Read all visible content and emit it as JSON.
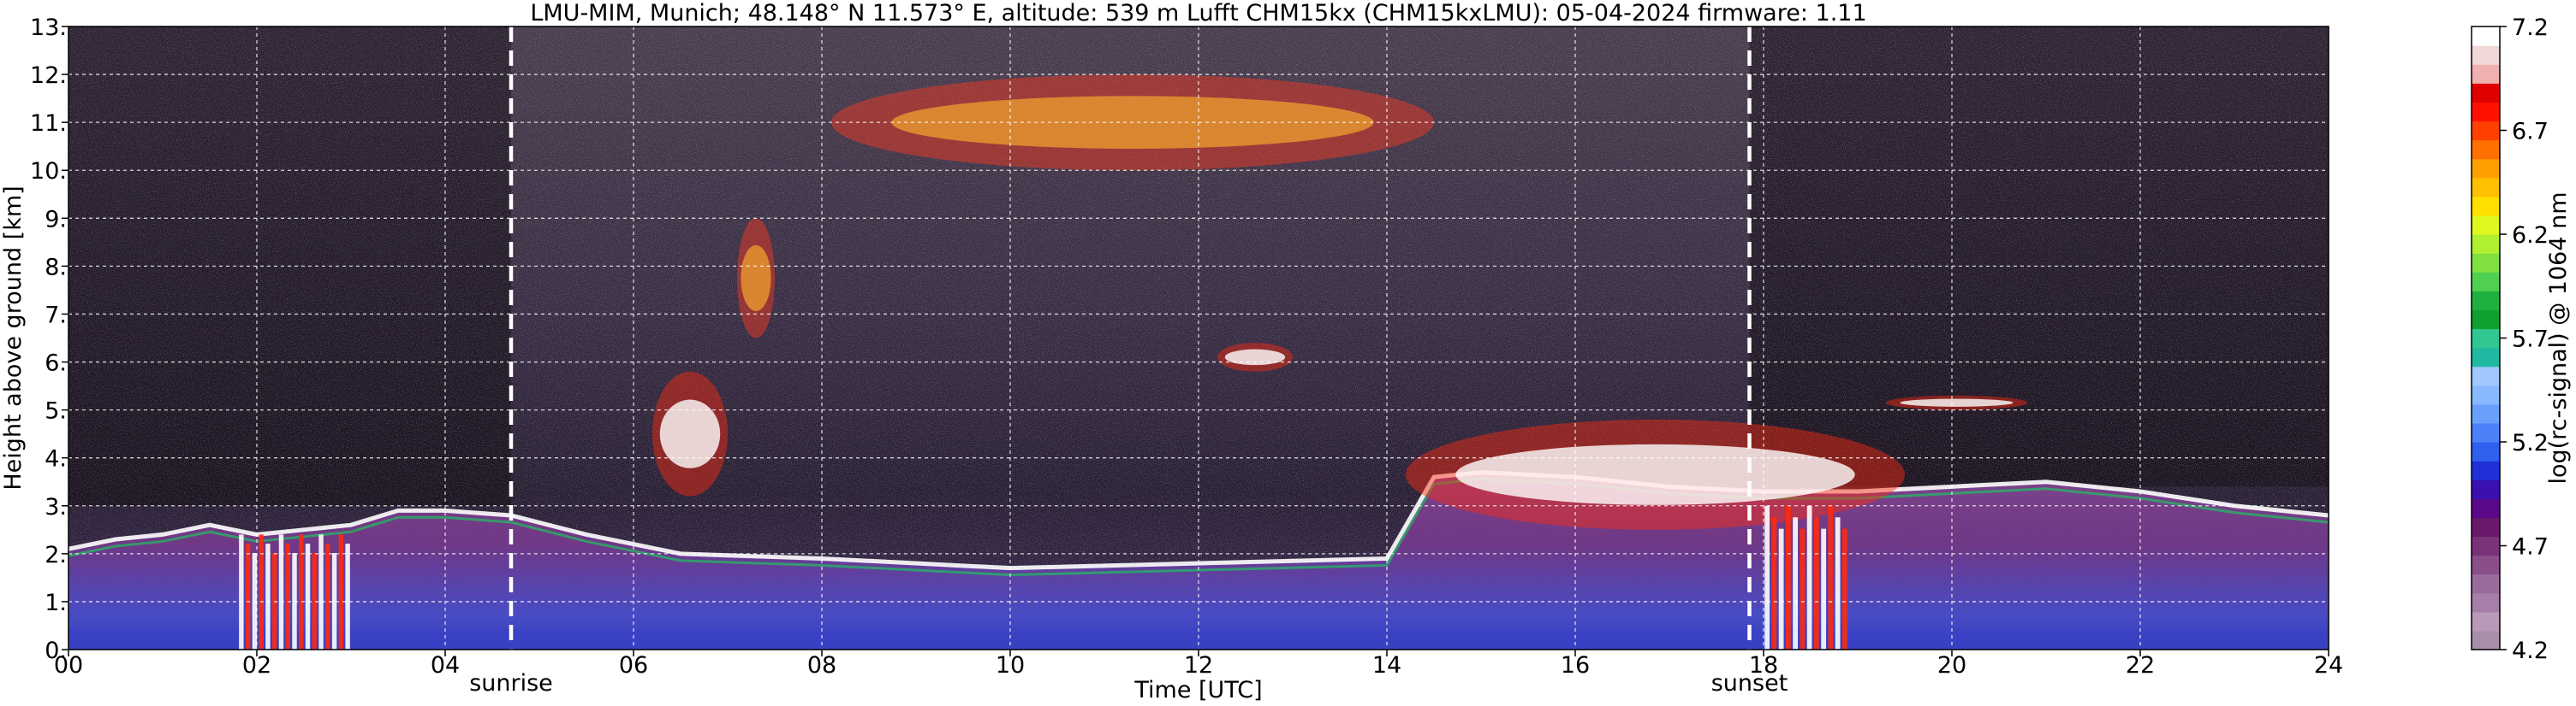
{
  "chart_data": {
    "type": "heatmap",
    "title": "LMU-MIM, Munich; 48.148° N 11.573° E, altitude: 539 m    Lufft CHM15kx (CHM15kxLMU): 05-04-2024    firmware: 1.11",
    "xlabel": "Time [UTC]",
    "ylabel": "Height above ground [km]",
    "xlim": [
      0,
      24
    ],
    "ylim": [
      0,
      13
    ],
    "x_ticks": [
      "00",
      "02",
      "04",
      "06",
      "08",
      "10",
      "12",
      "14",
      "16",
      "18",
      "20",
      "22",
      "24"
    ],
    "y_ticks": [
      "0.",
      "1.",
      "2.",
      "3.",
      "4.",
      "5.",
      "6.",
      "7.",
      "8.",
      "9.",
      "10.",
      "11.",
      "12.",
      "13."
    ],
    "grid": true,
    "annotations": [
      {
        "label": "sunrise",
        "x": 4.7
      },
      {
        "label": "sunset",
        "x": 17.85
      }
    ],
    "colorbar": {
      "label": "log(rc-signal) @ 1064 nm",
      "range": [
        4.2,
        7.2
      ],
      "tick_labels": [
        "4.2",
        "4.7",
        "5.2",
        "5.7",
        "6.2",
        "6.7",
        "7.2"
      ],
      "colors": [
        "#a98fa9",
        "#b89ab8",
        "#a77ea7",
        "#9a6b9a",
        "#8a4f8a",
        "#7a327a",
        "#6a1a6a",
        "#5a0a88",
        "#3a10b0",
        "#2030d8",
        "#3060ee",
        "#4a80f8",
        "#6aa0fc",
        "#88b8fe",
        "#a0c8ff",
        "#20b8a0",
        "#30c890",
        "#10a030",
        "#20b040",
        "#50d050",
        "#80e040",
        "#b0f030",
        "#e0f820",
        "#ffe000",
        "#ffc000",
        "#ffa000",
        "#ff7000",
        "#ff4000",
        "#ff1000",
        "#e00000",
        "#f0b0b0",
        "#f0d8d8",
        "#ffffff"
      ]
    },
    "features": [
      {
        "kind": "boundary_layer",
        "points": [
          [
            0,
            2.1
          ],
          [
            0.5,
            2.3
          ],
          [
            1,
            2.4
          ],
          [
            1.5,
            2.6
          ],
          [
            2,
            2.4
          ],
          [
            2.5,
            2.5
          ],
          [
            3,
            2.6
          ],
          [
            3.5,
            2.9
          ],
          [
            4,
            2.9
          ],
          [
            4.7,
            2.8
          ],
          [
            5.5,
            2.4
          ],
          [
            6.5,
            2.0
          ],
          [
            8,
            1.9
          ],
          [
            10,
            1.7
          ],
          [
            12,
            1.8
          ],
          [
            14,
            1.9
          ],
          [
            14.5,
            3.6
          ],
          [
            15,
            3.7
          ],
          [
            16,
            3.6
          ],
          [
            17,
            3.4
          ],
          [
            18,
            3.3
          ],
          [
            19,
            3.3
          ],
          [
            20,
            3.4
          ],
          [
            21,
            3.5
          ],
          [
            22,
            3.3
          ],
          [
            23,
            3.0
          ],
          [
            24,
            2.8
          ]
        ]
      },
      {
        "kind": "cirrus",
        "x": [
          8.1,
          14.5
        ],
        "y": [
          10.0,
          12.0
        ]
      },
      {
        "kind": "cirrus",
        "x": [
          7.1,
          7.5
        ],
        "y": [
          6.5,
          9.0
        ]
      },
      {
        "kind": "cloud",
        "x": [
          6.2,
          7.0
        ],
        "y": [
          3.2,
          5.8
        ]
      },
      {
        "kind": "cloud",
        "x": [
          12.2,
          13.0
        ],
        "y": [
          5.8,
          6.4
        ]
      },
      {
        "kind": "cloud",
        "x": [
          14.2,
          19.5
        ],
        "y": [
          2.5,
          4.8
        ]
      },
      {
        "kind": "cloud",
        "x": [
          19.3,
          20.8
        ],
        "y": [
          5.0,
          5.3
        ]
      },
      {
        "kind": "precipitation",
        "x": [
          1.8,
          3.0
        ],
        "y": [
          0,
          2.4
        ]
      },
      {
        "kind": "precipitation",
        "x": [
          18.0,
          18.9
        ],
        "y": [
          0,
          3.0
        ]
      }
    ]
  }
}
